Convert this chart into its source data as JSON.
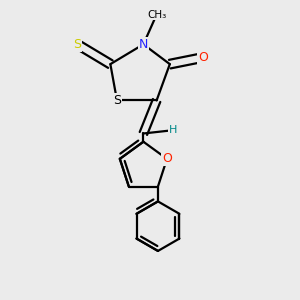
{
  "bg_color": "#ebebeb",
  "bond_color": "#000000",
  "bond_width": 1.6,
  "dbo": 0.012,
  "figsize": [
    3.0,
    3.0
  ],
  "dpi": 100,
  "xlim": [
    0.15,
    0.85
  ],
  "ylim": [
    0.05,
    0.95
  ],
  "labels": {
    "S1": {
      "text": "S",
      "color": "#cccc00",
      "fs": 9
    },
    "N3": {
      "text": "N",
      "color": "#2222ff",
      "fs": 9
    },
    "O4": {
      "text": "O",
      "color": "#ff2200",
      "fs": 9
    },
    "S2": {
      "text": "S",
      "color": "#000000",
      "fs": 9
    },
    "H": {
      "text": "H",
      "color": "#008888",
      "fs": 8
    },
    "Of": {
      "text": "O",
      "color": "#ff2200",
      "fs": 9
    },
    "Me": {
      "text": "CH₃",
      "color": "#000000",
      "fs": 7.5
    }
  }
}
